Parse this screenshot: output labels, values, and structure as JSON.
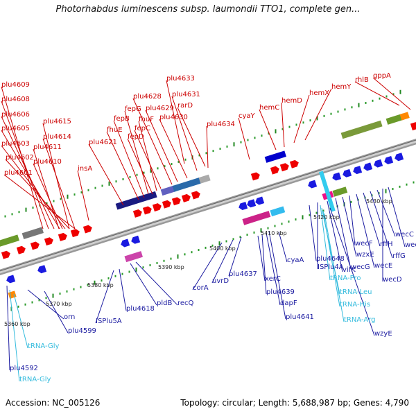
{
  "title": "Photorhabdus luminescens subsp. laumondii TTO1, complete gen...",
  "footer": {
    "accession": "Accession: NC_005126",
    "topology": "Topology: circular; Length: 5,688,987 bp; Genes: 4,790"
  },
  "colors": {
    "forward_gene": "#ee0000",
    "reverse_gene": "#1a1ae0",
    "rna_gene": "#33ccee",
    "forward_label": "#cc0000",
    "reverse_label": "#1a1aa0",
    "rna_label": "#33bbdd",
    "tick": "#228822"
  },
  "ticks": [
    "5360 kbp",
    "5370 kbp",
    "5380 kbp",
    "5390 kbp",
    "5400 kbp",
    "5410 kbp",
    "5420 kbp",
    "5430 kbp"
  ],
  "top_labels": [
    "plu4609",
    "plu4608",
    "plu4606",
    "plu4605",
    "plu4603",
    "plu4602",
    "plu4601",
    "plu4611",
    "plu4610",
    "plu4615",
    "plu4614",
    "insA",
    "plu4621",
    "fhuE",
    "fepB",
    "fepG",
    "fepD",
    "fhuF",
    "fepC",
    "plu4628",
    "plu4629",
    "plu4630",
    "plu4633",
    "plu4631",
    "rarD",
    "plu4634",
    "cyaY",
    "hemC",
    "hemD",
    "hemX",
    "hemY",
    "rhlB",
    "gppA"
  ],
  "bottom_labels": [
    "plu4599",
    "orn",
    "plu4592",
    "ISPlu5A",
    "plu4618",
    "pldB",
    "recQ",
    "corA",
    "uvrD",
    "plu4637",
    "xerC",
    "plu4639",
    "dapF",
    "plu4641",
    "cyaA",
    "plu4648",
    "ISPlu4A",
    "vifK",
    "wecG",
    "wzxE",
    "wecF",
    "wecE",
    "rffH",
    "rffG",
    "wecC",
    "wecD",
    "wecB",
    "wzyE"
  ],
  "rna_labels": [
    "tRNA-Gly",
    "tRNA-Gly",
    "tRNA-Pro",
    "tRNA-Leu",
    "tRNA-His",
    "tRNA-Arg"
  ]
}
